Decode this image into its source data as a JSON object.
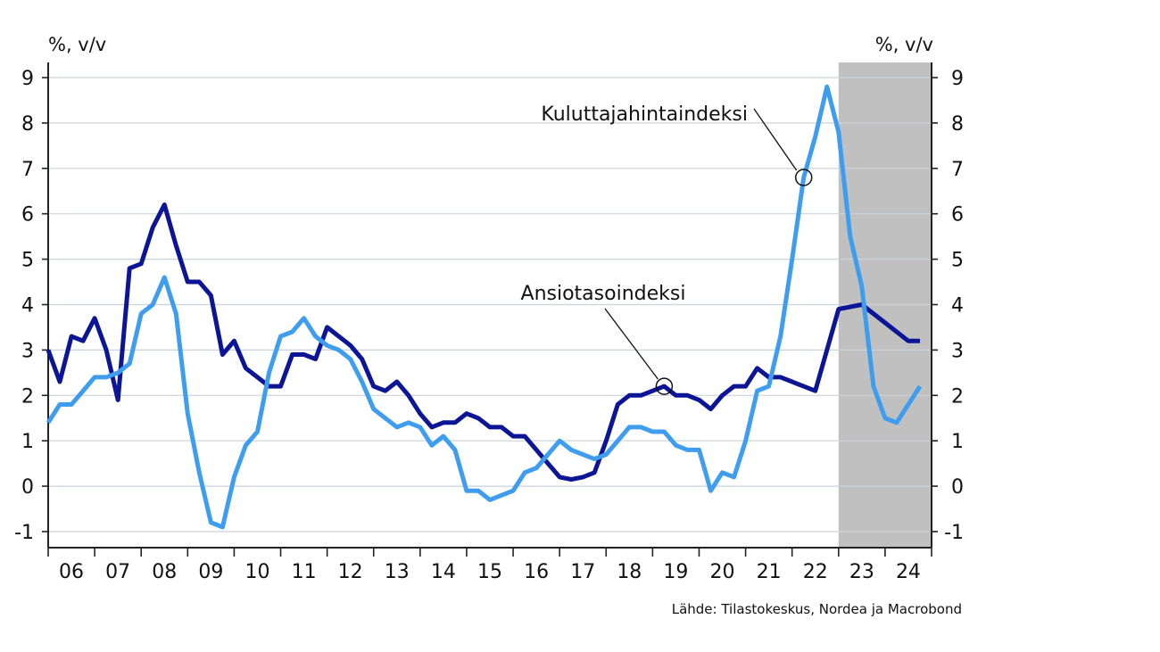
{
  "chart_data": {
    "type": "line",
    "left_unit_label": "%, v/v",
    "right_unit_label": "%, v/v",
    "y_range": [
      -1,
      9
    ],
    "y_ticks": [
      -1,
      0,
      1,
      2,
      3,
      4,
      5,
      6,
      7,
      8,
      9
    ],
    "x_range": [
      2006,
      2025
    ],
    "x_tick_labels": [
      "06",
      "07",
      "08",
      "09",
      "10",
      "11",
      "12",
      "13",
      "14",
      "15",
      "16",
      "17",
      "18",
      "19",
      "20",
      "21",
      "22",
      "23",
      "24"
    ],
    "forecast_shading": {
      "from": 2023,
      "to": 2025,
      "color": "#c0c0c0"
    },
    "grid": true,
    "series": [
      {
        "name": "Ansiotasoindeksi",
        "color": "#0c1595",
        "x": [
          2006.0,
          2006.25,
          2006.5,
          2006.75,
          2007.0,
          2007.25,
          2007.5,
          2007.75,
          2008.0,
          2008.25,
          2008.5,
          2008.75,
          2009.0,
          2009.25,
          2009.5,
          2009.75,
          2010.0,
          2010.25,
          2010.5,
          2010.75,
          2011.0,
          2011.25,
          2011.5,
          2011.75,
          2012.0,
          2012.25,
          2012.5,
          2012.75,
          2013.0,
          2013.25,
          2013.5,
          2013.75,
          2014.0,
          2014.25,
          2014.5,
          2014.75,
          2015.0,
          2015.25,
          2015.5,
          2015.75,
          2016.0,
          2016.25,
          2016.5,
          2016.75,
          2017.0,
          2017.25,
          2017.5,
          2017.75,
          2018.0,
          2018.25,
          2018.5,
          2018.75,
          2019.0,
          2019.25,
          2019.5,
          2019.75,
          2020.0,
          2020.25,
          2020.5,
          2020.75,
          2021.0,
          2021.25,
          2021.5,
          2021.75,
          2022.0,
          2022.5,
          2023.0,
          2023.5,
          2024.0,
          2024.5,
          2024.75
        ],
        "values": [
          3.0,
          2.3,
          3.3,
          3.2,
          3.7,
          3.0,
          1.9,
          4.8,
          4.9,
          5.7,
          6.2,
          5.3,
          4.5,
          4.5,
          4.2,
          2.9,
          3.2,
          2.6,
          2.4,
          2.2,
          2.2,
          2.9,
          2.9,
          2.8,
          3.5,
          3.3,
          3.1,
          2.8,
          2.2,
          2.1,
          2.3,
          2.0,
          1.6,
          1.3,
          1.4,
          1.4,
          1.6,
          1.5,
          1.3,
          1.3,
          1.1,
          1.1,
          0.8,
          0.5,
          0.2,
          0.15,
          0.2,
          0.3,
          1.0,
          1.8,
          2.0,
          2.0,
          2.1,
          2.2,
          2.0,
          2.0,
          1.9,
          1.7,
          2.0,
          2.2,
          2.2,
          2.6,
          2.4,
          2.4,
          2.3,
          2.1,
          3.9,
          4.0,
          3.6,
          3.2,
          3.2
        ]
      },
      {
        "name": "Kuluttajahintaindeksi",
        "color": "#3f9df0",
        "x": [
          2006.0,
          2006.25,
          2006.5,
          2006.75,
          2007.0,
          2007.25,
          2007.5,
          2007.75,
          2008.0,
          2008.25,
          2008.5,
          2008.75,
          2009.0,
          2009.25,
          2009.5,
          2009.75,
          2010.0,
          2010.25,
          2010.5,
          2010.75,
          2011.0,
          2011.25,
          2011.5,
          2011.75,
          2012.0,
          2012.25,
          2012.5,
          2012.75,
          2013.0,
          2013.25,
          2013.5,
          2013.75,
          2014.0,
          2014.25,
          2014.5,
          2014.75,
          2015.0,
          2015.25,
          2015.5,
          2015.75,
          2016.0,
          2016.25,
          2016.5,
          2016.75,
          2017.0,
          2017.25,
          2017.5,
          2017.75,
          2018.0,
          2018.25,
          2018.5,
          2018.75,
          2019.0,
          2019.25,
          2019.5,
          2019.75,
          2020.0,
          2020.25,
          2020.5,
          2020.75,
          2021.0,
          2021.25,
          2021.5,
          2021.75,
          2022.0,
          2022.25,
          2022.5,
          2022.75,
          2023.0,
          2023.25,
          2023.5,
          2023.75,
          2024.0,
          2024.25,
          2024.5,
          2024.75
        ],
        "values": [
          1.4,
          1.8,
          1.8,
          2.1,
          2.4,
          2.4,
          2.5,
          2.7,
          3.8,
          4.0,
          4.6,
          3.8,
          1.6,
          0.3,
          -0.8,
          -0.9,
          0.2,
          0.9,
          1.2,
          2.5,
          3.3,
          3.4,
          3.7,
          3.3,
          3.1,
          3.0,
          2.8,
          2.3,
          1.7,
          1.5,
          1.3,
          1.4,
          1.3,
          0.9,
          1.1,
          0.8,
          -0.1,
          -0.1,
          -0.3,
          -0.2,
          -0.1,
          0.3,
          0.4,
          0.7,
          1.0,
          0.8,
          0.7,
          0.6,
          0.7,
          1.0,
          1.3,
          1.3,
          1.2,
          1.2,
          0.9,
          0.8,
          0.8,
          -0.1,
          0.3,
          0.2,
          1.0,
          2.1,
          2.2,
          3.3,
          5.0,
          6.8,
          7.7,
          8.8,
          7.8,
          5.5,
          4.4,
          2.2,
          1.5,
          1.4,
          1.8,
          2.2
        ]
      }
    ],
    "annotations": [
      {
        "text": "Kuluttajahintaindeksi",
        "series": "Kuluttajahintaindeksi",
        "point": [
          2022.25,
          6.8
        ]
      },
      {
        "text": "Ansiotasoindeksi",
        "series": "Ansiotasoindeksi",
        "point": [
          2019.25,
          2.2
        ]
      }
    ],
    "source": "Lähde: Tilastokeskus, Nordea ja Macrobond"
  }
}
